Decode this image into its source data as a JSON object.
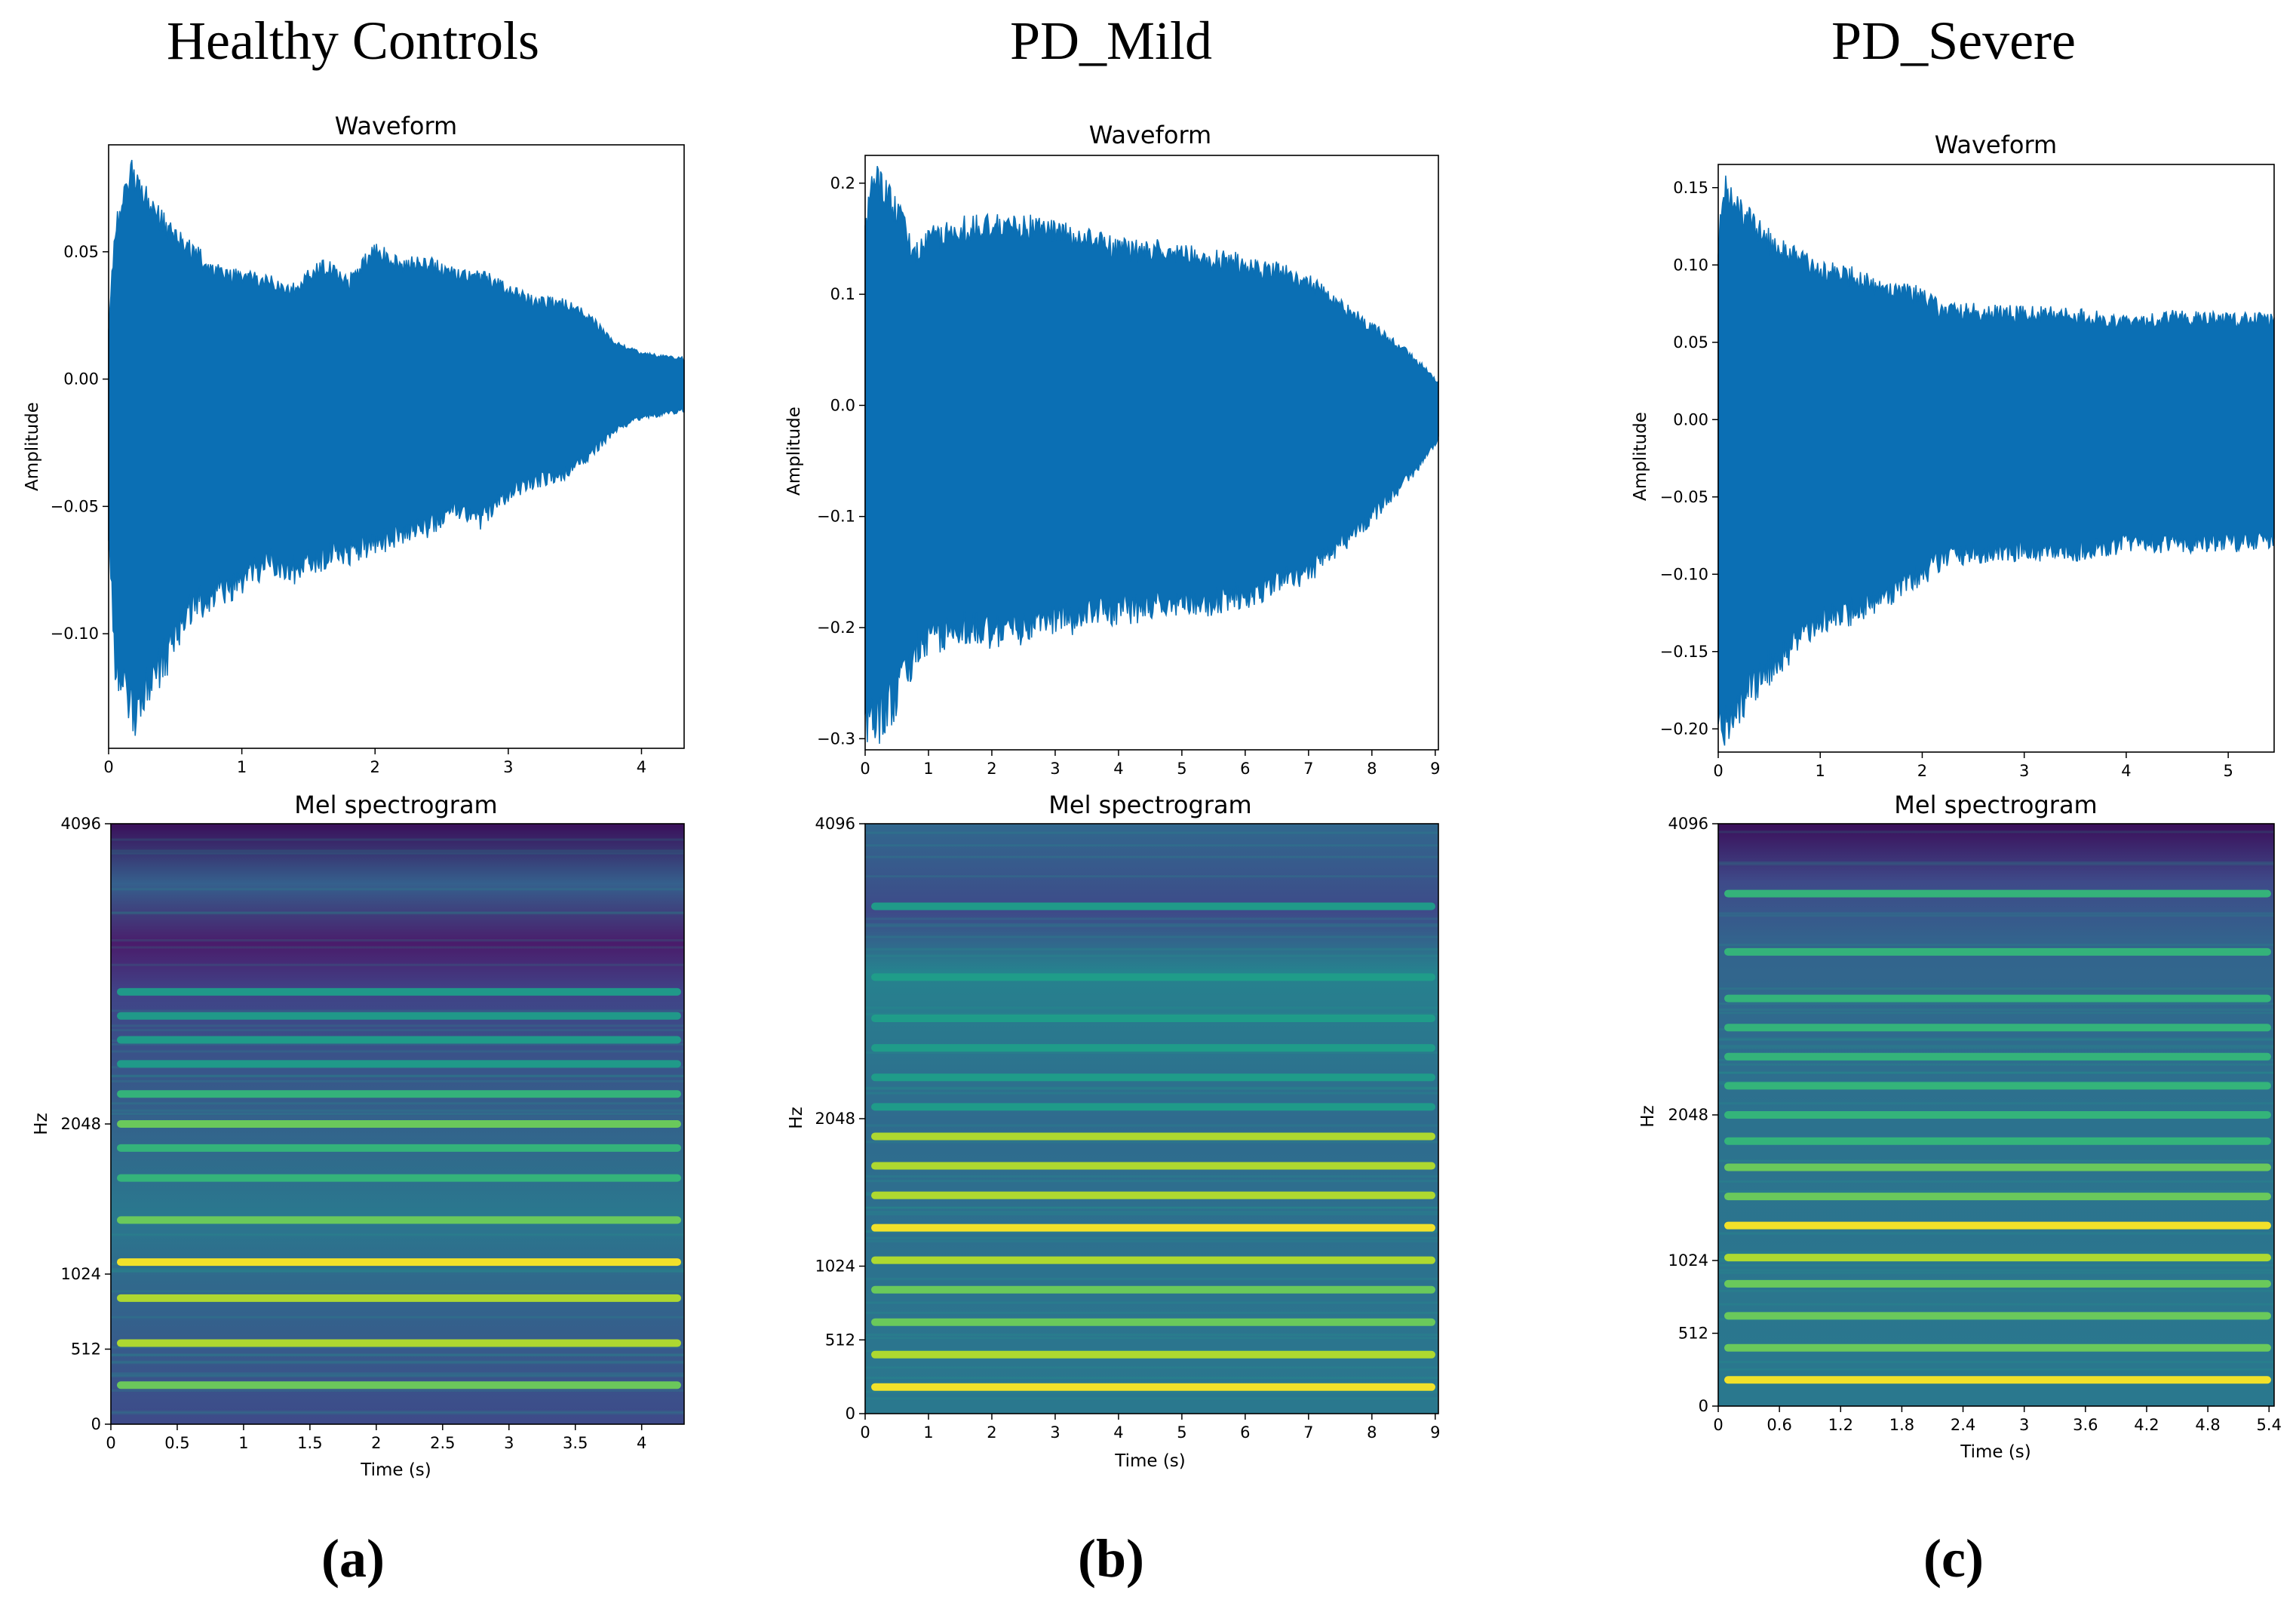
{
  "figure": {
    "columns": [
      {
        "heading": "Healthy Controls",
        "panel_label": "(a)"
      },
      {
        "heading": "PD_Mild",
        "panel_label": "(b)"
      },
      {
        "heading": "PD_Severe",
        "panel_label": "(c)"
      }
    ]
  },
  "colors": {
    "waveform": "#0b6fb4",
    "spectrogram_low": "#3b0f5a",
    "spectrogram_mid": "#2a788e",
    "spectrogram_high": "#fde725"
  },
  "chart_data": [
    {
      "type": "area",
      "id": "wave-hc",
      "title": "Waveform",
      "xlabel": "",
      "ylabel": "Amplitude",
      "xlim": [
        0,
        4.32
      ],
      "ylim": [
        -0.145,
        0.092
      ],
      "xticks": [
        0,
        1,
        2,
        3,
        4
      ],
      "xtick_labels": [
        "0",
        "1",
        "2",
        "3",
        "4"
      ],
      "yticks": [
        0.05,
        0.0,
        -0.05,
        -0.1
      ],
      "ytick_labels": [
        "0.05",
        "0.00",
        "−0.05",
        "−0.10"
      ],
      "envelope": {
        "t": [
          0.0,
          0.05,
          0.18,
          0.3,
          0.45,
          0.6,
          0.8,
          1.0,
          1.2,
          1.4,
          1.6,
          1.8,
          2.0,
          2.2,
          2.4,
          2.6,
          2.8,
          3.0,
          3.2,
          3.4,
          3.6,
          3.8,
          4.0,
          4.32
        ],
        "upper": [
          0.02,
          0.06,
          0.081,
          0.07,
          0.058,
          0.052,
          0.042,
          0.04,
          0.038,
          0.035,
          0.045,
          0.038,
          0.05,
          0.045,
          0.045,
          0.042,
          0.04,
          0.035,
          0.03,
          0.03,
          0.025,
          0.014,
          0.01,
          0.008
        ],
        "lower": [
          -0.06,
          -0.11,
          -0.133,
          -0.118,
          -0.108,
          -0.09,
          -0.085,
          -0.08,
          -0.072,
          -0.075,
          -0.07,
          -0.068,
          -0.065,
          -0.06,
          -0.058,
          -0.05,
          -0.055,
          -0.045,
          -0.04,
          -0.038,
          -0.03,
          -0.02,
          -0.015,
          -0.012
        ]
      }
    },
    {
      "type": "heatmap",
      "id": "mel-hc",
      "title": "Mel spectrogram",
      "xlabel": "Time (s)",
      "ylabel": "Hz",
      "xlim": [
        0,
        4.32
      ],
      "ylim": [
        0,
        4096
      ],
      "xticks": [
        0,
        0.5,
        1,
        1.5,
        2,
        2.5,
        3,
        3.5,
        4
      ],
      "xtick_labels": [
        "0",
        "0.5",
        "1",
        "1.5",
        "2",
        "2.5",
        "3",
        "3.5",
        "4"
      ],
      "yticks": [
        0,
        512,
        1024,
        2048,
        4096
      ],
      "ytick_labels": [
        "0",
        "512",
        "1024",
        "2048",
        "4096"
      ],
      "harmonic_bands": [
        {
          "pos": 0.065,
          "intensity": 0.7
        },
        {
          "pos": 0.135,
          "intensity": 0.8
        },
        {
          "pos": 0.21,
          "intensity": 0.75
        },
        {
          "pos": 0.27,
          "intensity": 0.95
        },
        {
          "pos": 0.34,
          "intensity": 0.6
        },
        {
          "pos": 0.41,
          "intensity": 0.55
        },
        {
          "pos": 0.46,
          "intensity": 0.55
        },
        {
          "pos": 0.5,
          "intensity": 0.6
        },
        {
          "pos": 0.55,
          "intensity": 0.5
        },
        {
          "pos": 0.6,
          "intensity": 0.35
        },
        {
          "pos": 0.64,
          "intensity": 0.3
        },
        {
          "pos": 0.68,
          "intensity": 0.25
        },
        {
          "pos": 0.72,
          "intensity": 0.25
        }
      ]
    },
    {
      "type": "area",
      "id": "wave-mild",
      "title": "Waveform",
      "xlabel": "",
      "ylabel": "Amplitude",
      "xlim": [
        0,
        9.05
      ],
      "ylim": [
        -0.31,
        0.225
      ],
      "xticks": [
        0,
        1,
        2,
        3,
        4,
        5,
        6,
        7,
        8,
        9
      ],
      "xtick_labels": [
        "0",
        "1",
        "2",
        "3",
        "4",
        "5",
        "6",
        "7",
        "8",
        "9"
      ],
      "yticks": [
        0.2,
        0.1,
        0.0,
        -0.1,
        -0.2,
        -0.3
      ],
      "ytick_labels": [
        "0.2",
        "0.1",
        "0.0",
        "−0.1",
        "−0.2",
        "−0.3"
      ],
      "envelope": {
        "t": [
          0.0,
          0.15,
          0.5,
          0.8,
          1.0,
          1.5,
          2.0,
          2.5,
          3.0,
          3.5,
          4.0,
          4.5,
          5.0,
          5.5,
          6.0,
          6.5,
          7.0,
          7.5,
          8.0,
          8.5,
          8.8,
          9.05
        ],
        "upper": [
          0.16,
          0.205,
          0.175,
          0.135,
          0.15,
          0.158,
          0.16,
          0.16,
          0.155,
          0.148,
          0.14,
          0.14,
          0.135,
          0.132,
          0.128,
          0.12,
          0.11,
          0.09,
          0.07,
          0.05,
          0.035,
          0.02
        ],
        "lower": [
          -0.28,
          -0.29,
          -0.26,
          -0.22,
          -0.21,
          -0.2,
          -0.205,
          -0.2,
          -0.195,
          -0.19,
          -0.185,
          -0.18,
          -0.18,
          -0.175,
          -0.17,
          -0.16,
          -0.15,
          -0.125,
          -0.1,
          -0.07,
          -0.05,
          -0.03
        ]
      }
    },
    {
      "type": "heatmap",
      "id": "mel-mild",
      "title": "Mel spectrogram",
      "xlabel": "Time (s)",
      "ylabel": "Hz",
      "xlim": [
        0,
        9.05
      ],
      "ylim": [
        0,
        4096
      ],
      "xticks": [
        0,
        1,
        2,
        3,
        4,
        5,
        6,
        7,
        8,
        9
      ],
      "xtick_labels": [
        "0",
        "1",
        "2",
        "3",
        "4",
        "5",
        "6",
        "7",
        "8",
        "9"
      ],
      "yticks": [
        0,
        512,
        1024,
        2048,
        4096
      ],
      "ytick_labels": [
        "0",
        "512",
        "1024",
        "2048",
        "4096"
      ],
      "harmonic_bands": [
        {
          "pos": 0.045,
          "intensity": 0.95
        },
        {
          "pos": 0.1,
          "intensity": 0.85
        },
        {
          "pos": 0.155,
          "intensity": 0.7
        },
        {
          "pos": 0.21,
          "intensity": 0.65
        },
        {
          "pos": 0.26,
          "intensity": 0.85
        },
        {
          "pos": 0.315,
          "intensity": 0.9
        },
        {
          "pos": 0.37,
          "intensity": 0.8
        },
        {
          "pos": 0.42,
          "intensity": 0.8
        },
        {
          "pos": 0.47,
          "intensity": 0.8
        },
        {
          "pos": 0.52,
          "intensity": 0.4
        },
        {
          "pos": 0.57,
          "intensity": 0.35
        },
        {
          "pos": 0.62,
          "intensity": 0.35
        },
        {
          "pos": 0.67,
          "intensity": 0.3
        },
        {
          "pos": 0.74,
          "intensity": 0.4
        },
        {
          "pos": 0.86,
          "intensity": 0.25
        }
      ]
    },
    {
      "type": "area",
      "id": "wave-severe",
      "title": "Waveform",
      "xlabel": "",
      "ylabel": "Amplitude",
      "xlim": [
        0,
        5.45
      ],
      "ylim": [
        -0.215,
        0.165
      ],
      "xticks": [
        0,
        1,
        2,
        3,
        4,
        5
      ],
      "xtick_labels": [
        "0",
        "1",
        "2",
        "3",
        "4",
        "5"
      ],
      "yticks": [
        0.15,
        0.1,
        0.05,
        0.0,
        -0.05,
        -0.1,
        -0.15,
        -0.2
      ],
      "ytick_labels": [
        "0.15",
        "0.10",
        "0.05",
        "0.00",
        "−0.05",
        "−0.10",
        "−0.15",
        "−0.20"
      ],
      "envelope": {
        "t": [
          0.0,
          0.05,
          0.3,
          0.5,
          0.8,
          1.0,
          1.3,
          1.6,
          2.0,
          2.2,
          2.5,
          3.0,
          3.5,
          4.0,
          4.5,
          5.0,
          5.45
        ],
        "upper": [
          0.11,
          0.15,
          0.13,
          0.115,
          0.105,
          0.098,
          0.092,
          0.085,
          0.08,
          0.07,
          0.07,
          0.068,
          0.068,
          0.062,
          0.066,
          0.064,
          0.065
        ],
        "lower": [
          -0.19,
          -0.2,
          -0.175,
          -0.16,
          -0.14,
          -0.128,
          -0.125,
          -0.115,
          -0.1,
          -0.09,
          -0.086,
          -0.085,
          -0.085,
          -0.08,
          -0.08,
          -0.08,
          -0.078
        ]
      }
    },
    {
      "type": "heatmap",
      "id": "mel-severe",
      "title": "Mel spectrogram",
      "xlabel": "Time (s)",
      "ylabel": "Hz",
      "xlim": [
        0,
        5.45
      ],
      "ylim": [
        0,
        4096
      ],
      "xticks": [
        0,
        0.6,
        1.2,
        1.8,
        2.4,
        3,
        3.6,
        4.2,
        4.8,
        5.4
      ],
      "xtick_labels": [
        "0",
        "0.6",
        "1.2",
        "1.8",
        "2.4",
        "3",
        "3.6",
        "4.2",
        "4.8",
        "5.4"
      ],
      "yticks": [
        0,
        512,
        1024,
        2048,
        4096
      ],
      "ytick_labels": [
        "0",
        "512",
        "1024",
        "2048",
        "4096"
      ],
      "harmonic_bands": [
        {
          "pos": 0.045,
          "intensity": 0.95
        },
        {
          "pos": 0.1,
          "intensity": 0.6
        },
        {
          "pos": 0.155,
          "intensity": 0.7
        },
        {
          "pos": 0.21,
          "intensity": 0.65
        },
        {
          "pos": 0.255,
          "intensity": 0.8
        },
        {
          "pos": 0.31,
          "intensity": 0.9
        },
        {
          "pos": 0.36,
          "intensity": 0.6
        },
        {
          "pos": 0.41,
          "intensity": 0.6
        },
        {
          "pos": 0.455,
          "intensity": 0.55
        },
        {
          "pos": 0.5,
          "intensity": 0.55
        },
        {
          "pos": 0.55,
          "intensity": 0.5
        },
        {
          "pos": 0.6,
          "intensity": 0.5
        },
        {
          "pos": 0.65,
          "intensity": 0.45
        },
        {
          "pos": 0.7,
          "intensity": 0.45
        },
        {
          "pos": 0.78,
          "intensity": 0.5
        },
        {
          "pos": 0.88,
          "intensity": 0.45
        }
      ]
    }
  ]
}
